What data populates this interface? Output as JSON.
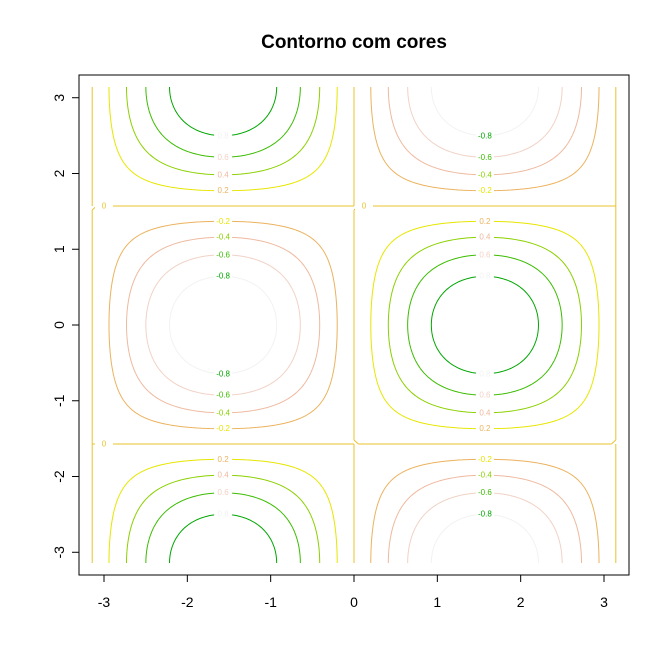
{
  "chart_data": {
    "type": "contour",
    "title": "Contorno com cores",
    "xlabel": "",
    "ylabel": "",
    "xlim": [
      -3.3,
      3.3
    ],
    "ylim": [
      -3.3,
      3.3
    ],
    "x_ticks": [
      -3,
      -2,
      -1,
      0,
      1,
      2,
      3
    ],
    "y_ticks": [
      -3,
      -2,
      -1,
      0,
      1,
      2,
      3
    ],
    "x_tick_labels": [
      "-3",
      "-2",
      "-1",
      "0",
      "1",
      "2",
      "3"
    ],
    "y_tick_labels": [
      "-3",
      "-2",
      "-1",
      "0",
      "1",
      "2",
      "3"
    ],
    "x_range": [
      -3.1416,
      3.1416
    ],
    "y_range": [
      -3.1416,
      3.1416
    ],
    "function": "z = -sin(x) * cos(y)",
    "levels": [
      -0.8,
      -0.6,
      -0.4,
      -0.2,
      0,
      0.2,
      0.4,
      0.6,
      0.8
    ],
    "level_labels": [
      "-0.8",
      "-0.6",
      "-0.4",
      "-0.2",
      "0",
      "0.2",
      "0.4",
      "0.6",
      "0.8"
    ],
    "level_colors": [
      "#00A600",
      "#3BBC00",
      "#8BD000",
      "#E6E600",
      "#E8C32E",
      "#EBB25E",
      "#EEB99F",
      "#F1D2C6",
      "#F2F2F2"
    ],
    "grid": false,
    "legend": "none"
  }
}
